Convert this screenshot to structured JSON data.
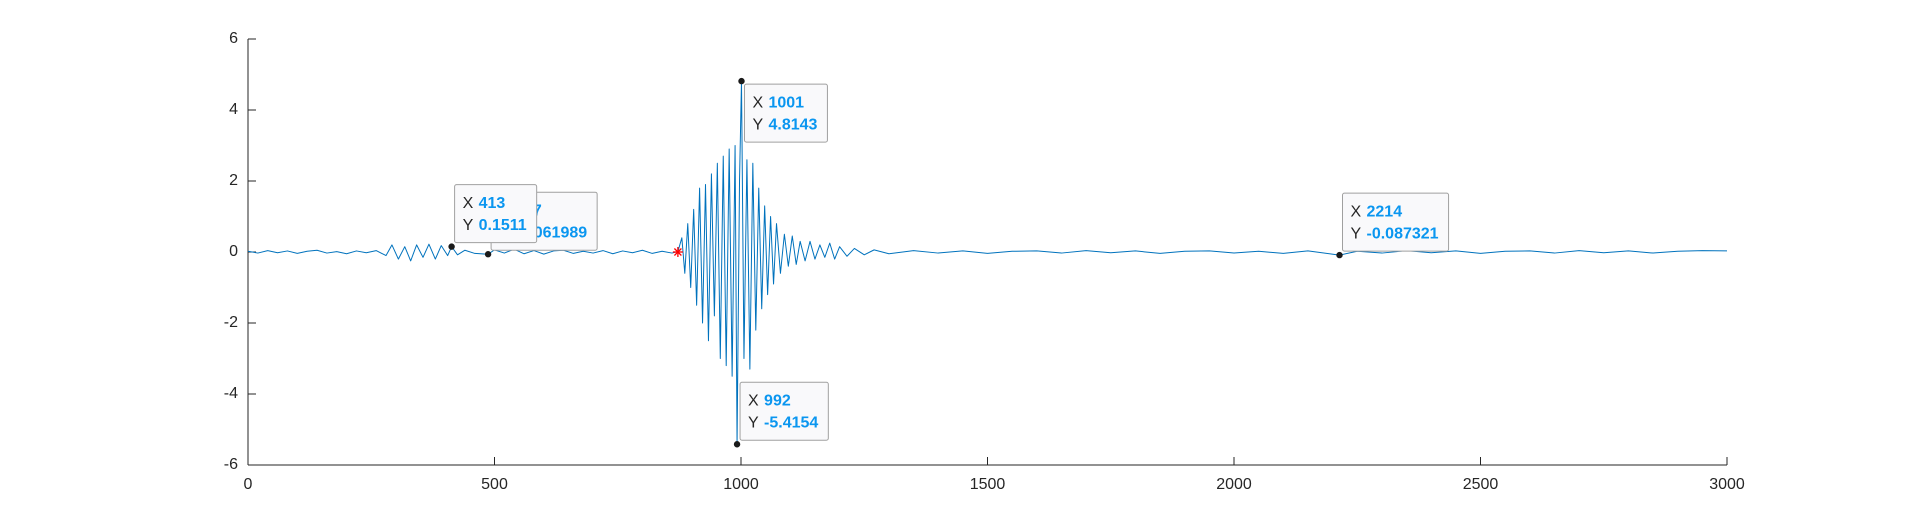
{
  "chart_data": {
    "type": "line",
    "xlim": [
      0,
      3000
    ],
    "xticks": [
      0,
      500,
      1000,
      1500,
      2000,
      2500,
      3000
    ],
    "ylim": [
      -6,
      6
    ],
    "yticks": [
      -6,
      -4,
      -2,
      0,
      2,
      4,
      6
    ],
    "x": [
      0,
      20,
      40,
      60,
      80,
      100,
      120,
      140,
      160,
      180,
      200,
      220,
      240,
      260,
      280,
      292,
      305,
      318,
      330,
      342,
      355,
      367,
      380,
      392,
      405,
      413,
      425,
      440,
      460,
      487,
      500,
      520,
      540,
      560,
      580,
      600,
      620,
      640,
      660,
      680,
      700,
      720,
      740,
      760,
      780,
      800,
      820,
      840,
      860,
      872,
      880,
      886,
      892,
      898,
      904,
      910,
      916,
      922,
      928,
      934,
      940,
      946,
      952,
      958,
      964,
      970,
      976,
      982,
      988,
      992,
      997,
      1001,
      1006,
      1012,
      1018,
      1024,
      1030,
      1036,
      1042,
      1048,
      1054,
      1060,
      1066,
      1072,
      1080,
      1088,
      1096,
      1104,
      1112,
      1120,
      1130,
      1140,
      1150,
      1160,
      1170,
      1180,
      1190,
      1200,
      1215,
      1230,
      1250,
      1270,
      1300,
      1350,
      1400,
      1450,
      1500,
      1550,
      1600,
      1650,
      1700,
      1750,
      1800,
      1850,
      1900,
      1950,
      2000,
      2050,
      2100,
      2150,
      2214,
      2250,
      2300,
      2350,
      2400,
      2450,
      2500,
      2550,
      2600,
      2650,
      2700,
      2750,
      2800,
      2850,
      2900,
      2950,
      3000
    ],
    "series": [
      {
        "color": "#0072bd",
        "values": [
          0.02,
          -0.03,
          0.04,
          -0.02,
          0.03,
          -0.04,
          0.02,
          0.05,
          -0.03,
          0.01,
          -0.05,
          0.03,
          -0.02,
          0.04,
          -0.1,
          0.2,
          -0.2,
          0.15,
          -0.25,
          0.2,
          -0.15,
          0.22,
          -0.2,
          0.18,
          -0.1,
          0.1511,
          -0.08,
          0.05,
          -0.04,
          -0.061989,
          0.06,
          -0.03,
          0.08,
          -0.05,
          0.04,
          -0.06,
          0.03,
          0.05,
          -0.04,
          0.02,
          -0.03,
          0.04,
          -0.05,
          0.03,
          -0.02,
          0.05,
          -0.04,
          0.02,
          -0.03,
          0.01,
          0.4,
          -0.6,
          0.8,
          -1.0,
          1.2,
          -1.5,
          1.8,
          -2.0,
          1.9,
          -2.5,
          2.2,
          -1.8,
          2.5,
          -3.0,
          2.7,
          -3.2,
          2.9,
          -3.5,
          3.0,
          -5.4154,
          2.0,
          4.8143,
          -3.0,
          2.6,
          -3.3,
          2.5,
          -2.2,
          1.8,
          -1.6,
          1.3,
          -1.2,
          1.0,
          -0.9,
          0.8,
          -0.6,
          0.5,
          -0.4,
          0.45,
          -0.35,
          0.3,
          -0.25,
          0.3,
          -0.2,
          0.2,
          -0.15,
          0.25,
          -0.2,
          0.15,
          -0.12,
          0.1,
          -0.08,
          0.06,
          -0.05,
          0.04,
          -0.03,
          0.03,
          -0.04,
          0.02,
          0.03,
          -0.03,
          0.04,
          -0.02,
          0.03,
          -0.04,
          0.02,
          0.03,
          -0.03,
          0.02,
          -0.04,
          0.03,
          -0.087321,
          0.02,
          -0.03,
          0.04,
          -0.02,
          0.03,
          -0.04,
          0.02,
          0.03,
          -0.03,
          0.04,
          -0.02,
          0.03,
          -0.03,
          0.02,
          0.04,
          0.03
        ]
      }
    ],
    "marker": {
      "x": 872,
      "y": 0,
      "color": "#ff0000"
    },
    "datatip_labels": [
      "X",
      "Y"
    ],
    "datatips": [
      {
        "x": 487,
        "y": -0.061989
      },
      {
        "x": 413,
        "y": 0.1511
      },
      {
        "x": 1001,
        "y": 4.8143
      },
      {
        "x": 992,
        "y": -5.4154
      },
      {
        "x": 2214,
        "y": -0.087321
      }
    ]
  }
}
